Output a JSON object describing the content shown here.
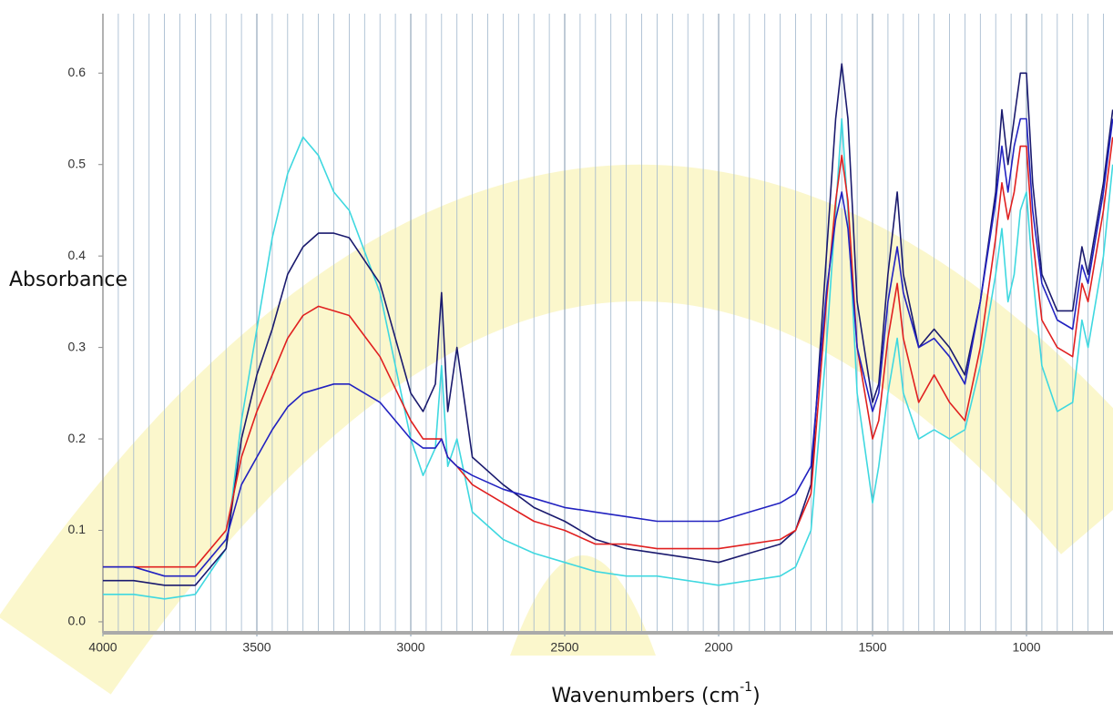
{
  "chart_data": {
    "type": "line",
    "ylabel": "Absorbance",
    "xlabel": [
      "Wavenumbers (cm",
      "-1",
      ")"
    ],
    "xlim": [
      4000,
      719
    ],
    "ylim": [
      -0.012,
      0.665
    ],
    "xticks": [
      4000,
      3500,
      3000,
      2500,
      2000,
      1500,
      1000
    ],
    "yticks": [
      {
        "value": 0,
        "label": "0.0"
      },
      0.1,
      0.2,
      0.3,
      0.4,
      0.5,
      0.6
    ],
    "xgrid": [
      3950,
      3900,
      3850,
      3800,
      3750,
      3700,
      3650,
      3600,
      3550,
      3500,
      3450,
      3400,
      3350,
      3300,
      3250,
      3200,
      3150,
      3100,
      3050,
      3000,
      2950,
      2900,
      2850,
      2800,
      2750,
      2700,
      2650,
      2600,
      2550,
      2500,
      2450,
      2400,
      2350,
      2300,
      2250,
      2200,
      2150,
      2100,
      2050,
      2000,
      1950,
      1900,
      1850,
      1800,
      1750,
      1700,
      1650,
      1600,
      1550,
      1500,
      1450,
      1400,
      1350,
      1300,
      1250,
      1200,
      1150,
      1100,
      1050,
      1000,
      950,
      900,
      850,
      800,
      750
    ],
    "x": [
      4000,
      3900,
      3800,
      3700,
      3600,
      3550,
      3500,
      3450,
      3400,
      3350,
      3300,
      3250,
      3200,
      3100,
      3000,
      2960,
      2920,
      2900,
      2880,
      2850,
      2800,
      2700,
      2600,
      2500,
      2400,
      2300,
      2200,
      2100,
      2000,
      1900,
      1800,
      1750,
      1700,
      1650,
      1620,
      1600,
      1580,
      1550,
      1500,
      1480,
      1450,
      1420,
      1400,
      1350,
      1300,
      1250,
      1200,
      1150,
      1100,
      1080,
      1060,
      1040,
      1020,
      1000,
      980,
      950,
      900,
      850,
      820,
      800,
      750,
      720
    ],
    "series": [
      {
        "color": "#3fd8e0",
        "values": [
          0.03,
          0.03,
          0.025,
          0.03,
          0.08,
          0.22,
          0.32,
          0.42,
          0.49,
          0.53,
          0.51,
          0.47,
          0.45,
          0.36,
          0.2,
          0.16,
          0.19,
          0.28,
          0.17,
          0.2,
          0.12,
          0.09,
          0.075,
          0.065,
          0.055,
          0.05,
          0.05,
          0.045,
          0.04,
          0.045,
          0.05,
          0.06,
          0.1,
          0.3,
          0.45,
          0.55,
          0.45,
          0.25,
          0.13,
          0.17,
          0.25,
          0.31,
          0.25,
          0.2,
          0.21,
          0.2,
          0.21,
          0.28,
          0.38,
          0.43,
          0.35,
          0.38,
          0.45,
          0.47,
          0.38,
          0.28,
          0.23,
          0.24,
          0.33,
          0.3,
          0.4,
          0.5
        ]
      },
      {
        "color": "#1a1a6e",
        "values": [
          0.045,
          0.045,
          0.04,
          0.04,
          0.08,
          0.2,
          0.27,
          0.32,
          0.38,
          0.41,
          0.425,
          0.425,
          0.42,
          0.37,
          0.25,
          0.23,
          0.26,
          0.36,
          0.23,
          0.3,
          0.18,
          0.15,
          0.125,
          0.11,
          0.09,
          0.08,
          0.075,
          0.07,
          0.065,
          0.075,
          0.085,
          0.1,
          0.15,
          0.4,
          0.55,
          0.61,
          0.55,
          0.35,
          0.24,
          0.26,
          0.38,
          0.47,
          0.38,
          0.3,
          0.32,
          0.3,
          0.27,
          0.35,
          0.47,
          0.56,
          0.5,
          0.55,
          0.6,
          0.6,
          0.48,
          0.38,
          0.34,
          0.34,
          0.41,
          0.38,
          0.48,
          0.56
        ]
      },
      {
        "color": "#e02020",
        "values": [
          0.06,
          0.06,
          0.06,
          0.06,
          0.1,
          0.18,
          0.23,
          0.27,
          0.31,
          0.335,
          0.345,
          0.34,
          0.335,
          0.29,
          0.22,
          0.2,
          0.2,
          0.2,
          0.18,
          0.17,
          0.15,
          0.13,
          0.11,
          0.1,
          0.085,
          0.085,
          0.08,
          0.08,
          0.08,
          0.085,
          0.09,
          0.1,
          0.14,
          0.35,
          0.46,
          0.51,
          0.46,
          0.3,
          0.2,
          0.22,
          0.31,
          0.37,
          0.31,
          0.24,
          0.27,
          0.24,
          0.22,
          0.3,
          0.42,
          0.48,
          0.44,
          0.47,
          0.52,
          0.52,
          0.42,
          0.33,
          0.3,
          0.29,
          0.37,
          0.35,
          0.45,
          0.53
        ]
      },
      {
        "color": "#2222c0",
        "values": [
          0.06,
          0.06,
          0.05,
          0.05,
          0.09,
          0.15,
          0.18,
          0.21,
          0.235,
          0.25,
          0.255,
          0.26,
          0.26,
          0.24,
          0.2,
          0.19,
          0.19,
          0.2,
          0.18,
          0.17,
          0.16,
          0.145,
          0.135,
          0.125,
          0.12,
          0.115,
          0.11,
          0.11,
          0.11,
          0.12,
          0.13,
          0.14,
          0.17,
          0.36,
          0.44,
          0.47,
          0.43,
          0.3,
          0.23,
          0.25,
          0.35,
          0.41,
          0.36,
          0.3,
          0.31,
          0.29,
          0.26,
          0.35,
          0.46,
          0.52,
          0.47,
          0.52,
          0.55,
          0.55,
          0.45,
          0.37,
          0.33,
          0.32,
          0.39,
          0.37,
          0.47,
          0.55
        ]
      }
    ]
  }
}
